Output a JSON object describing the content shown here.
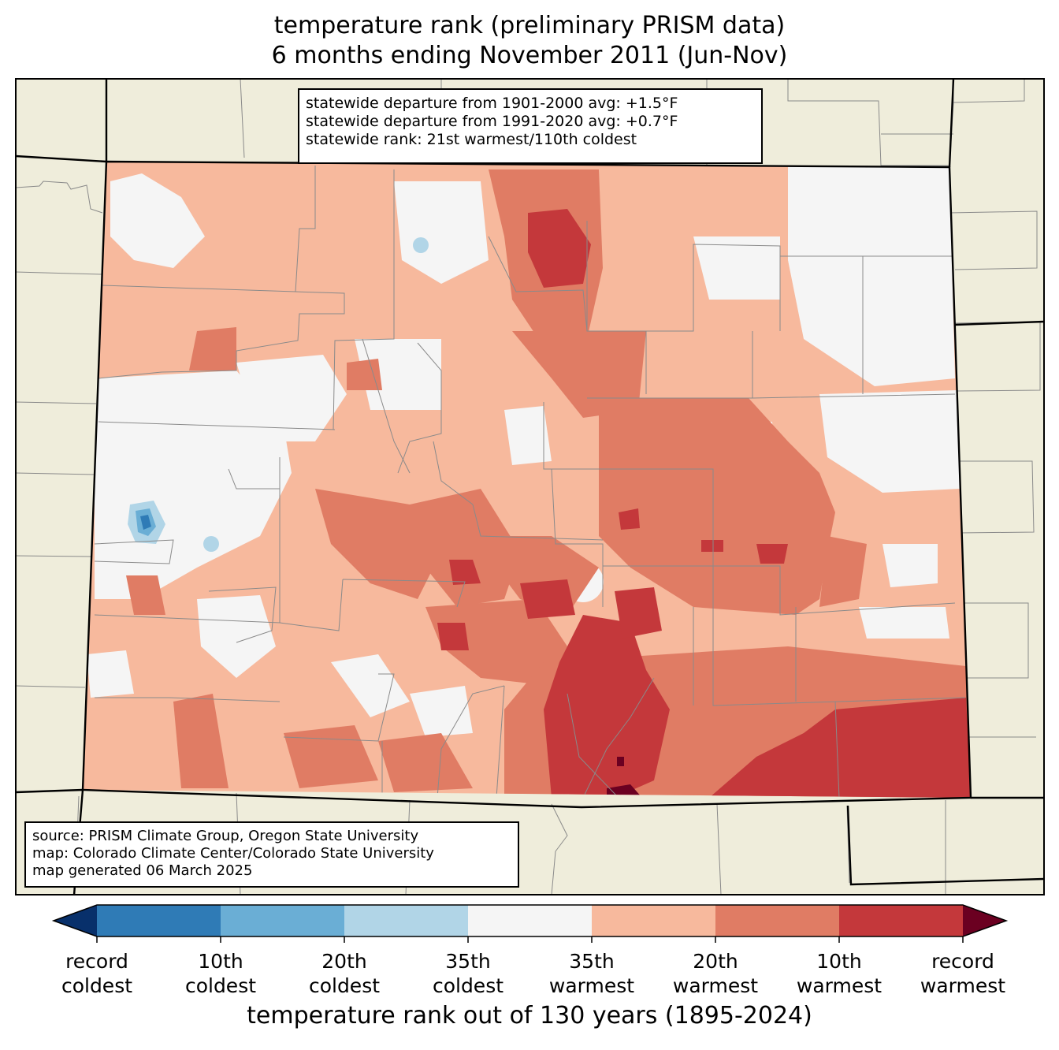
{
  "title": {
    "line1": "temperature rank (preliminary PRISM data)",
    "line2": "6 months ending November 2011 (Jun-Nov)"
  },
  "stats": {
    "line1": "statewide departure from 1901-2000 avg: +1.5°F",
    "line2": "statewide departure from 1991-2020 avg: +0.7°F",
    "line3": "statewide rank: 21st warmest/110th coldest"
  },
  "source": {
    "line1": "source: PRISM Climate Group, Oregon State University",
    "line2": "map: Colorado Climate Center/Colorado State University",
    "line3": "map generated 06 March 2025"
  },
  "colorbar": {
    "title": "temperature rank out of 130 years (1895-2024)",
    "colors": {
      "record_coldest": "#08306b",
      "coldest_10": "#2f7bb6",
      "coldest_20": "#6aaed5",
      "coldest_35": "#b1d5e7",
      "middle": "#f5f5f5",
      "warmest_35": "#f7b99d",
      "warmest_20": "#e07c64",
      "warmest_10": "#c4383b",
      "record_warmest": "#6b0021"
    },
    "ticks": [
      {
        "line1": "record",
        "line2": "coldest"
      },
      {
        "line1": "10th",
        "line2": "coldest"
      },
      {
        "line1": "20th",
        "line2": "coldest"
      },
      {
        "line1": "35th",
        "line2": "coldest"
      },
      {
        "line1": "35th",
        "line2": "warmest"
      },
      {
        "line1": "20th",
        "line2": "warmest"
      },
      {
        "line1": "10th",
        "line2": "warmest"
      },
      {
        "line1": "record",
        "line2": "warmest"
      }
    ]
  },
  "map_colors": {
    "background": "#efeddb",
    "county_lines": "#8a8a8a",
    "state_lines": "#000000"
  }
}
